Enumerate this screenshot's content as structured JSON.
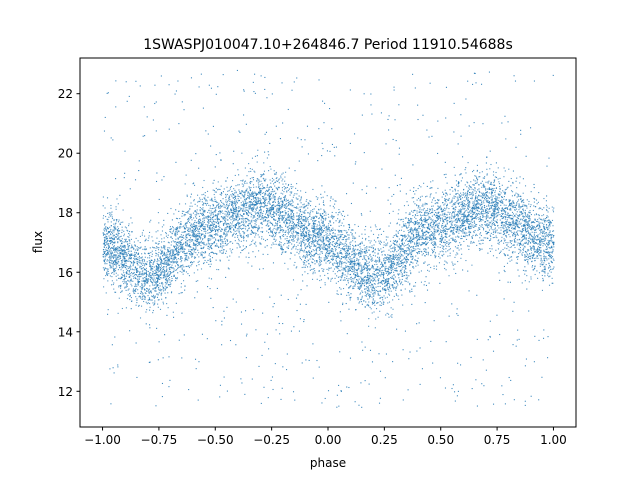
{
  "chart_data": {
    "type": "scatter",
    "title": "1SWASPJ010047.10+264846.7 Period 11910.54688s",
    "xlabel": "phase",
    "ylabel": "flux",
    "xlim": [
      -1.1,
      1.1
    ],
    "ylim": [
      10.8,
      23.2
    ],
    "xticks": [
      -1.0,
      -0.75,
      -0.5,
      -0.25,
      0.0,
      0.25,
      0.5,
      0.75,
      1.0
    ],
    "xtick_labels": [
      "−1.00",
      "−0.75",
      "−0.50",
      "−0.25",
      "0.00",
      "0.25",
      "0.50",
      "0.75",
      "1.00"
    ],
    "yticks": [
      12,
      14,
      16,
      18,
      20,
      22
    ],
    "ytick_labels": [
      "12",
      "14",
      "16",
      "18",
      "20",
      "22"
    ],
    "grid": false,
    "marker_color": "#1f77b4",
    "series": [
      {
        "x_range": [
          -1.0,
          1.0
        ],
        "trend": {
          "phase": [
            -1.0,
            -0.8,
            -0.55,
            -0.3,
            -0.05,
            0.2,
            0.45,
            0.7,
            0.95,
            1.0
          ],
          "flux": [
            16.9,
            15.9,
            17.5,
            18.2,
            17.2,
            15.9,
            17.5,
            18.2,
            17.1,
            16.9
          ]
        },
        "band_half_width": 1.1,
        "outlier_range": [
          11.4,
          22.8
        ]
      }
    ]
  }
}
